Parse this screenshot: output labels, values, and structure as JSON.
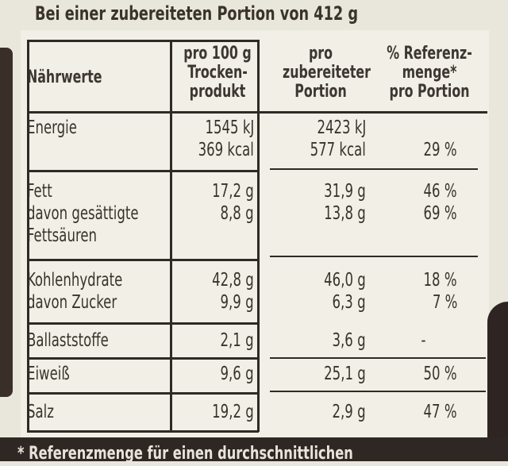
{
  "header": {
    "portion_line": "Bei einer zubereiteten Portion von 412 g"
  },
  "table": {
    "columns": {
      "label": "Nährwerte",
      "per100g": [
        "pro 100 g",
        "Trocken-",
        "produkt"
      ],
      "perPortion": [
        "pro",
        "zubereiteter",
        "Portion"
      ],
      "reference": [
        "% Referenz-",
        "menge*",
        "pro Portion"
      ]
    },
    "rows": [
      {
        "labels": [
          "Energie",
          ""
        ],
        "per100g": [
          "1545 kJ",
          "369 kcal"
        ],
        "perPortion": [
          "2423 kJ",
          "577 kcal"
        ],
        "reference": [
          "",
          "29 %"
        ]
      },
      {
        "labels": [
          "Fett",
          "davon gesättigte",
          "Fettsäuren"
        ],
        "per100g": [
          "17,2 g",
          "8,8 g"
        ],
        "perPortion": [
          "31,9 g",
          "13,8 g"
        ],
        "reference": [
          "46 %",
          "69 %"
        ]
      },
      {
        "labels": [
          "Kohlenhydrate",
          "davon Zucker"
        ],
        "per100g": [
          "42,8 g",
          "9,9 g"
        ],
        "perPortion": [
          "46,0 g",
          "6,3 g"
        ],
        "reference": [
          "18 %",
          "7 %"
        ]
      },
      {
        "labels": [
          "Ballaststoffe"
        ],
        "per100g": [
          "2,1 g"
        ],
        "perPortion": [
          "3,6 g"
        ],
        "reference": [
          "-"
        ]
      },
      {
        "labels": [
          "Eiweiß"
        ],
        "per100g": [
          "9,6 g"
        ],
        "perPortion": [
          "25,1 g"
        ],
        "reference": [
          "50 %"
        ]
      },
      {
        "labels": [
          "Salz"
        ],
        "per100g": [
          "19,2 g"
        ],
        "perPortion": [
          "2,9 g"
        ],
        "reference": [
          "47 %"
        ]
      }
    ]
  },
  "footnote": "* Referenzmenge für einen durchschnittlichen"
}
